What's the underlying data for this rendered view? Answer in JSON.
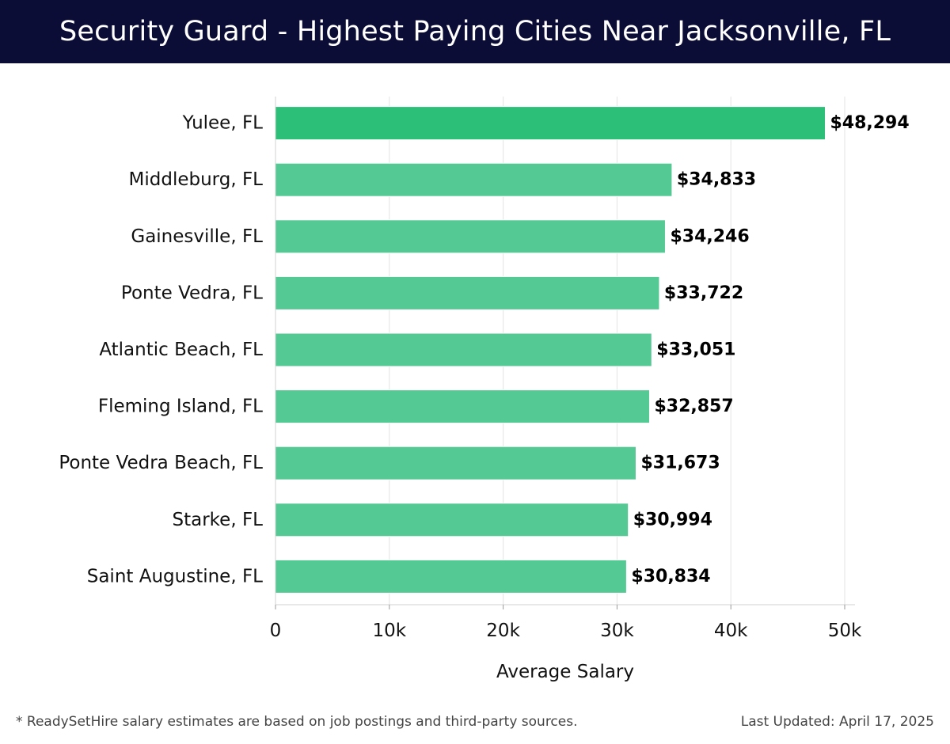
{
  "header": {
    "title": "Security Guard - Highest Paying Cities Near Jacksonville, FL"
  },
  "footer": {
    "note": "* ReadySetHire salary estimates are based on job postings and third-party sources.",
    "updated": "Last Updated: April 17, 2025"
  },
  "chart_data": {
    "type": "bar",
    "orientation": "horizontal",
    "title": "Security Guard - Highest Paying Cities Near Jacksonville, FL",
    "xlabel": "Average Salary",
    "ylabel": "",
    "xlim": [
      0,
      50000
    ],
    "xticks": [
      0,
      10000,
      20000,
      30000,
      40000,
      50000
    ],
    "xtick_labels": [
      "0",
      "10k",
      "20k",
      "30k",
      "40k",
      "50k"
    ],
    "grid": "vertical",
    "categories": [
      "Yulee, FL",
      "Middleburg, FL",
      "Gainesville, FL",
      "Ponte Vedra, FL",
      "Atlantic Beach, FL",
      "Fleming Island, FL",
      "Ponte Vedra Beach, FL",
      "Starke, FL",
      "Saint Augustine, FL"
    ],
    "values": [
      48294,
      34833,
      34246,
      33722,
      33051,
      32857,
      31673,
      30994,
      30834
    ],
    "value_labels": [
      "$48,294",
      "$34,833",
      "$34,246",
      "$33,722",
      "$33,051",
      "$32,857",
      "$31,673",
      "$30,994",
      "$30,834"
    ],
    "colors": {
      "highlight": "#2bbf77",
      "bar": "#55c993",
      "grid": "#e3e3e3",
      "axis": "#d0d0d0",
      "text": "#111111"
    }
  }
}
